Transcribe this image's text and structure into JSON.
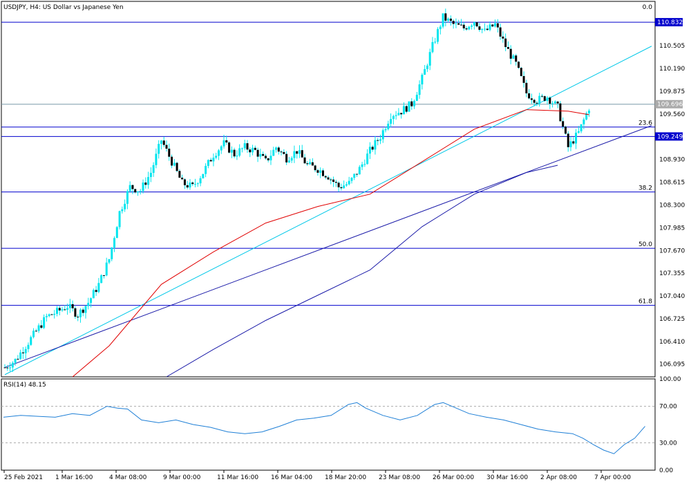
{
  "window": {
    "title": "USDJPY, H4:  US Dollar vs Japanese Yen",
    "corner_value": "0.0"
  },
  "colors": {
    "background": "#ffffff",
    "candles": "#00e5ee",
    "grid_lines": "#0000cd",
    "trendline_light": "#00c8e8",
    "trendline_dark": "#1a1aa8",
    "ma_red": "#e00000",
    "ma_blue": "#1a1aa8",
    "rsi_line": "#1e7fd6",
    "price_box": "#0000cd",
    "current_box": "#aaaaaa"
  },
  "chart_data": [
    {
      "type": "candlestick",
      "title": "USDJPY, H4:  US Dollar vs Japanese Yen",
      "x_tick_labels": [
        "25 Feb 2021",
        "1 Mar 16:00",
        "4 Mar 08:00",
        "9 Mar 00:00",
        "11 Mar 16:00",
        "16 Mar 04:00",
        "18 Mar 20:00",
        "23 Mar 08:00",
        "26 Mar 00:00",
        "30 Mar 16:00",
        "2 Apr 08:00",
        "7 Apr 00:00"
      ],
      "y_tick_labels": [
        "110.505",
        "110.190",
        "109.875",
        "109.560",
        "108.930",
        "108.615",
        "108.300",
        "107.985",
        "107.670",
        "107.355",
        "107.040",
        "106.725",
        "106.410",
        "106.095"
      ],
      "ylim": [
        105.92,
        111.12
      ],
      "close_points": [
        [
          0,
          106.05
        ],
        [
          4,
          106.15
        ],
        [
          8,
          106.35
        ],
        [
          12,
          106.55
        ],
        [
          16,
          106.75
        ],
        [
          20,
          106.82
        ],
        [
          24,
          106.9
        ],
        [
          28,
          106.78
        ],
        [
          32,
          106.95
        ],
        [
          36,
          107.2
        ],
        [
          40,
          107.55
        ],
        [
          44,
          108.2
        ],
        [
          48,
          108.55
        ],
        [
          52,
          108.5
        ],
        [
          56,
          108.75
        ],
        [
          60,
          109.2
        ],
        [
          64,
          108.9
        ],
        [
          68,
          108.6
        ],
        [
          72,
          108.55
        ],
        [
          76,
          108.75
        ],
        [
          80,
          109.0
        ],
        [
          84,
          109.15
        ],
        [
          88,
          109.0
        ],
        [
          92,
          109.1
        ],
        [
          96,
          109.05
        ],
        [
          100,
          108.9
        ],
        [
          104,
          109.1
        ],
        [
          108,
          108.95
        ],
        [
          112,
          109.05
        ],
        [
          116,
          108.85
        ],
        [
          120,
          108.8
        ],
        [
          124,
          108.7
        ],
        [
          128,
          108.55
        ],
        [
          132,
          108.6
        ],
        [
          136,
          108.8
        ],
        [
          140,
          109.05
        ],
        [
          144,
          109.25
        ],
        [
          148,
          109.55
        ],
        [
          152,
          109.6
        ],
        [
          156,
          109.7
        ],
        [
          160,
          110.05
        ],
        [
          164,
          110.5
        ],
        [
          168,
          110.9
        ],
        [
          172,
          110.8
        ],
        [
          176,
          110.75
        ],
        [
          180,
          110.85
        ],
        [
          184,
          110.7
        ],
        [
          188,
          110.8
        ],
        [
          192,
          110.5
        ],
        [
          196,
          110.25
        ],
        [
          200,
          109.85
        ],
        [
          204,
          109.75
        ],
        [
          208,
          109.8
        ],
        [
          212,
          109.65
        ],
        [
          216,
          109.1
        ],
        [
          220,
          109.3
        ],
        [
          224,
          109.65
        ]
      ],
      "horizontal_levels": [
        {
          "label": "110.832",
          "value": 110.832,
          "boxed": true
        },
        {
          "label": "109.696",
          "value": 109.696,
          "boxed": true,
          "current": true
        },
        {
          "label": "109.249",
          "value": 109.249,
          "boxed": true
        },
        {
          "label": "23.6",
          "value": 109.38,
          "fib": true
        },
        {
          "label": "38.2",
          "value": 108.48,
          "fib": true
        },
        {
          "label": "50.0",
          "value": 107.7,
          "fib": true
        },
        {
          "label": "61.8",
          "value": 106.91,
          "fib": true
        }
      ],
      "moving_averages": [
        {
          "color": "red",
          "points": [
            [
              26,
              105.92
            ],
            [
              40,
              106.35
            ],
            [
              60,
              107.2
            ],
            [
              80,
              107.65
            ],
            [
              100,
              108.05
            ],
            [
              120,
              108.28
            ],
            [
              140,
              108.45
            ],
            [
              160,
              108.9
            ],
            [
              180,
              109.35
            ],
            [
              200,
              109.62
            ],
            [
              216,
              109.6
            ],
            [
              224,
              109.55
            ]
          ]
        },
        {
          "color": "blue",
          "points": [
            [
              62,
              105.92
            ],
            [
              80,
              106.3
            ],
            [
              100,
              106.7
            ],
            [
              120,
              107.05
            ],
            [
              140,
              107.4
            ],
            [
              160,
              108.0
            ],
            [
              180,
              108.45
            ],
            [
              200,
              108.75
            ],
            [
              212,
              108.85
            ]
          ]
        }
      ],
      "trendlines": [
        {
          "color": "light",
          "points": [
            [
              0,
              105.95
            ],
            [
              248,
              110.5
            ]
          ]
        },
        {
          "color": "dark",
          "points": [
            [
              0,
              106.05
            ],
            [
              248,
              109.4
            ]
          ]
        }
      ]
    },
    {
      "type": "line",
      "title": "RSI(14) 48.15",
      "y_tick_labels": [
        "100.00",
        "70.00",
        "30.00",
        "0.00"
      ],
      "ylim": [
        0,
        100
      ],
      "levels": [
        70,
        30
      ],
      "values": [
        [
          0,
          58
        ],
        [
          10,
          60
        ],
        [
          20,
          59
        ],
        [
          30,
          58
        ],
        [
          40,
          62
        ],
        [
          50,
          60
        ],
        [
          60,
          70
        ],
        [
          66,
          68
        ],
        [
          72,
          67
        ],
        [
          80,
          55
        ],
        [
          90,
          52
        ],
        [
          100,
          55
        ],
        [
          110,
          50
        ],
        [
          120,
          47
        ],
        [
          130,
          42
        ],
        [
          140,
          40
        ],
        [
          150,
          42
        ],
        [
          160,
          48
        ],
        [
          170,
          55
        ],
        [
          180,
          57
        ],
        [
          190,
          60
        ],
        [
          200,
          72
        ],
        [
          205,
          74
        ],
        [
          210,
          68
        ],
        [
          220,
          60
        ],
        [
          230,
          55
        ],
        [
          240,
          60
        ],
        [
          250,
          72
        ],
        [
          255,
          74
        ],
        [
          260,
          70
        ],
        [
          270,
          62
        ],
        [
          280,
          58
        ],
        [
          290,
          55
        ],
        [
          300,
          50
        ],
        [
          310,
          45
        ],
        [
          320,
          42
        ],
        [
          330,
          40
        ],
        [
          336,
          35
        ],
        [
          342,
          28
        ],
        [
          348,
          22
        ],
        [
          354,
          18
        ],
        [
          360,
          28
        ],
        [
          366,
          35
        ],
        [
          372,
          48
        ]
      ]
    }
  ]
}
